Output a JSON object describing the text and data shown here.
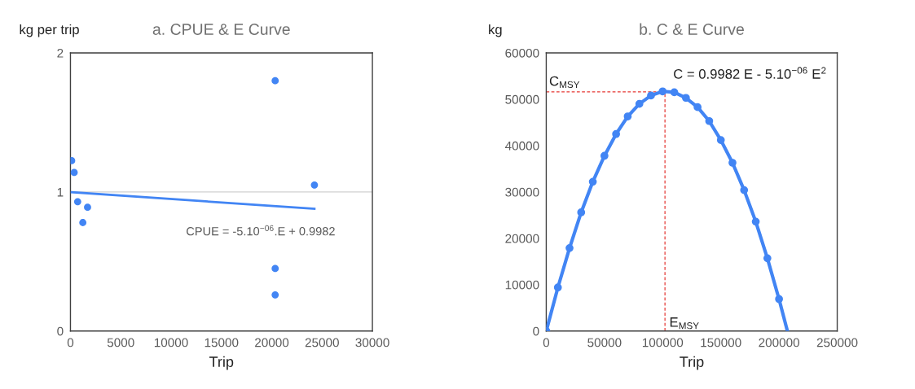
{
  "chart_data": [
    {
      "type": "scatter",
      "title": "a. CPUE & E Curve",
      "ylabel": "kg per trip",
      "xlabel": "Trip",
      "series": [
        {
          "type": "scatter",
          "color": "#4285f4",
          "x": [
            120,
            370,
            715,
            1230,
            1700,
            20340,
            20340,
            20340,
            24240
          ],
          "values": [
            1.225,
            1.14,
            0.93,
            0.78,
            0.89,
            1.8,
            0.45,
            0.26,
            1.05
          ]
        },
        {
          "type": "line",
          "color": "#4285f4",
          "x": [
            120,
            24240
          ],
          "values": [
            0.998,
            0.879
          ]
        }
      ],
      "xlim": [
        0,
        30000
      ],
      "xticks": [
        0,
        5000,
        10000,
        15000,
        20000,
        25000,
        30000
      ],
      "ylim": [
        0,
        2
      ],
      "yticks": [
        0,
        1,
        2
      ],
      "grid": "y",
      "legend": false,
      "annotations": [
        "CPUE = -5.10$^{−06}$.E + 0.9982"
      ]
    },
    {
      "type": "line",
      "title": "b. C & E Curve",
      "ylabel": "kg",
      "xlabel": "Trip",
      "marker": "circle",
      "line_style": "solid",
      "series": [
        {
          "color": "#4285f4",
          "x": [
            0,
            10000,
            20000,
            30000,
            40000,
            50000,
            60000,
            70000,
            80000,
            90000,
            100000,
            110000,
            120000,
            130000,
            140000,
            150000,
            160000,
            170000,
            180000,
            190000,
            200000
          ],
          "values": [
            0,
            9400,
            17900,
            25600,
            32200,
            37800,
            42500,
            46300,
            49000,
            50800,
            51700,
            51500,
            50300,
            48300,
            45300,
            41200,
            36300,
            30400,
            23600,
            15700,
            6900
          ]
        },
        {
          "color": "#4285f4",
          "marker": "none",
          "x": [
            200000,
            207200
          ],
          "values": [
            6900,
            0
          ]
        }
      ],
      "xlim": [
        0,
        250000
      ],
      "xticks": [
        0,
        50000,
        100000,
        150000,
        200000,
        250000
      ],
      "ylim": [
        0,
        60000
      ],
      "yticks": [
        0,
        10000,
        20000,
        30000,
        40000,
        50000,
        60000
      ],
      "grid": false,
      "legend": false,
      "ref_lines": [
        {
          "axis": "y",
          "value": 51600,
          "label": "C$_{MSY}$",
          "color": "#e53935",
          "line_style": "dashed"
        },
        {
          "axis": "x",
          "value": 102000,
          "label": "E$_{MSY}$",
          "color": "#e53935",
          "line_style": "dashed"
        }
      ],
      "annotations": [
        "C = 0.9982 E - 5.10$^{−06}$ E$^{2}$"
      ]
    }
  ]
}
